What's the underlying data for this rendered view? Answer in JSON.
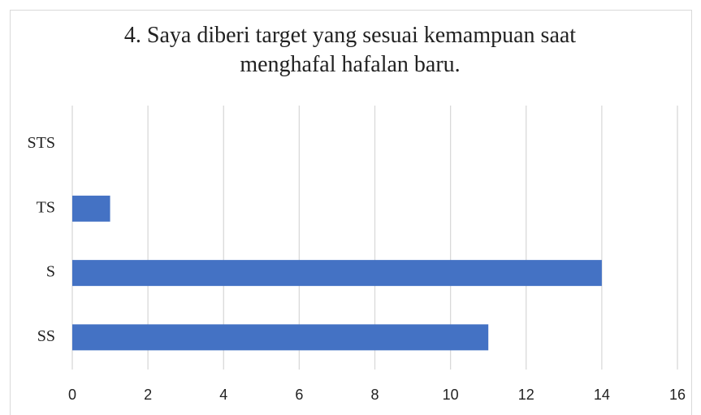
{
  "chart_data": {
    "type": "barh",
    "title": "4. Saya diberi target yang sesuai kemampuan saat menghafal hafalan baru.",
    "categories": [
      "STS",
      "TS",
      "S",
      "SS"
    ],
    "values": [
      0,
      1,
      14,
      11
    ],
    "color": "#4472c4",
    "xlim": [
      0,
      16
    ],
    "xticks": [
      0,
      2,
      4,
      6,
      8,
      10,
      12,
      14,
      16
    ],
    "grid": true
  }
}
